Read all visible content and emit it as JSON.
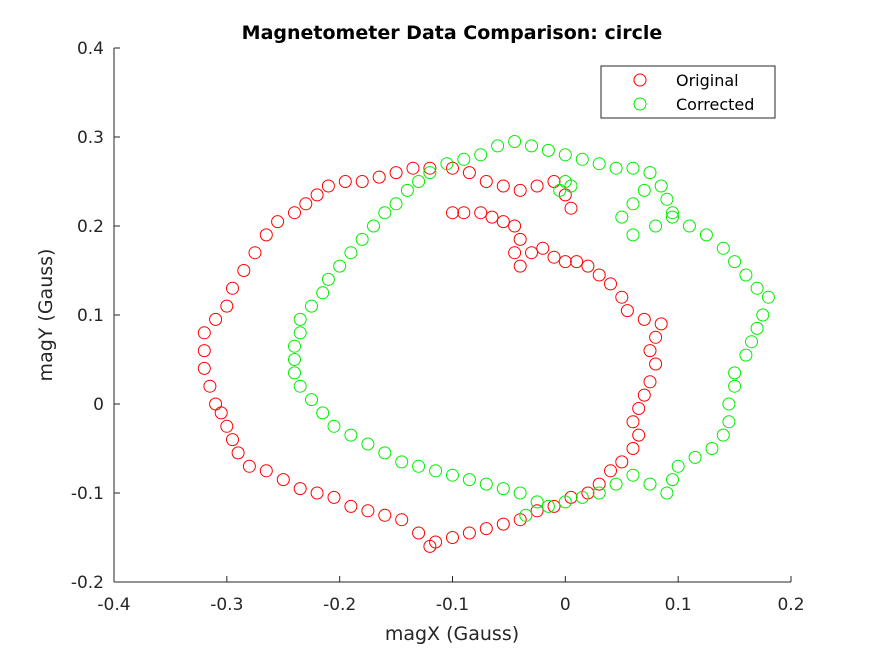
{
  "chart_data": {
    "type": "scatter",
    "title": "Magnetometer Data Comparison: circle",
    "xlabel": "magX (Gauss)",
    "ylabel": "magY (Gauss)",
    "xlim": [
      -0.4,
      0.2
    ],
    "ylim": [
      -0.2,
      0.4
    ],
    "xticks": [
      -0.4,
      -0.3,
      -0.2,
      -0.1,
      0,
      0.1,
      0.2
    ],
    "xtick_labels": [
      "-0.4",
      "-0.3",
      "-0.2",
      "-0.1",
      "0",
      "0.1",
      "0.2"
    ],
    "yticks": [
      -0.2,
      -0.1,
      0,
      0.1,
      0.2,
      0.3,
      0.4
    ],
    "ytick_labels": [
      "-0.2",
      "-0.1",
      "0",
      "0.1",
      "0.2",
      "0.3",
      "0.4"
    ],
    "grid": false,
    "legend_position": "top-right",
    "series": [
      {
        "name": "Original",
        "color": "#ff0000",
        "marker": "open-circle",
        "points": [
          [
            -0.115,
            -0.155
          ],
          [
            -0.13,
            -0.145
          ],
          [
            -0.145,
            -0.13
          ],
          [
            -0.16,
            -0.125
          ],
          [
            -0.175,
            -0.12
          ],
          [
            -0.19,
            -0.115
          ],
          [
            -0.205,
            -0.105
          ],
          [
            -0.22,
            -0.1
          ],
          [
            -0.235,
            -0.095
          ],
          [
            -0.25,
            -0.085
          ],
          [
            -0.265,
            -0.075
          ],
          [
            -0.28,
            -0.07
          ],
          [
            -0.29,
            -0.055
          ],
          [
            -0.295,
            -0.04
          ],
          [
            -0.3,
            -0.025
          ],
          [
            -0.305,
            -0.01
          ],
          [
            -0.31,
            0.0
          ],
          [
            -0.315,
            0.02
          ],
          [
            -0.32,
            0.04
          ],
          [
            -0.32,
            0.06
          ],
          [
            -0.32,
            0.08
          ],
          [
            -0.31,
            0.095
          ],
          [
            -0.3,
            0.11
          ],
          [
            -0.295,
            0.13
          ],
          [
            -0.285,
            0.15
          ],
          [
            -0.275,
            0.17
          ],
          [
            -0.265,
            0.19
          ],
          [
            -0.255,
            0.205
          ],
          [
            -0.24,
            0.215
          ],
          [
            -0.23,
            0.225
          ],
          [
            -0.22,
            0.235
          ],
          [
            -0.21,
            0.245
          ],
          [
            -0.195,
            0.25
          ],
          [
            -0.18,
            0.25
          ],
          [
            -0.165,
            0.255
          ],
          [
            -0.15,
            0.26
          ],
          [
            -0.135,
            0.265
          ],
          [
            -0.12,
            0.265
          ],
          [
            -0.1,
            0.265
          ],
          [
            -0.085,
            0.26
          ],
          [
            -0.07,
            0.25
          ],
          [
            -0.055,
            0.245
          ],
          [
            -0.04,
            0.24
          ],
          [
            -0.025,
            0.245
          ],
          [
            -0.01,
            0.25
          ],
          [
            0.0,
            0.235
          ],
          [
            0.005,
            0.22
          ],
          [
            -0.1,
            0.215
          ],
          [
            -0.09,
            0.215
          ],
          [
            -0.075,
            0.215
          ],
          [
            -0.065,
            0.21
          ],
          [
            -0.055,
            0.205
          ],
          [
            -0.045,
            0.2
          ],
          [
            -0.04,
            0.185
          ],
          [
            -0.045,
            0.17
          ],
          [
            -0.04,
            0.155
          ],
          [
            -0.03,
            0.17
          ],
          [
            -0.02,
            0.175
          ],
          [
            -0.01,
            0.165
          ],
          [
            0.0,
            0.16
          ],
          [
            0.01,
            0.16
          ],
          [
            0.02,
            0.155
          ],
          [
            0.03,
            0.145
          ],
          [
            0.04,
            0.135
          ],
          [
            0.05,
            0.12
          ],
          [
            0.055,
            0.105
          ],
          [
            0.07,
            0.095
          ],
          [
            0.085,
            0.09
          ],
          [
            0.08,
            0.075
          ],
          [
            0.075,
            0.06
          ],
          [
            0.08,
            0.045
          ],
          [
            0.075,
            0.025
          ],
          [
            0.07,
            0.01
          ],
          [
            0.065,
            -0.005
          ],
          [
            0.06,
            -0.02
          ],
          [
            0.065,
            -0.035
          ],
          [
            0.06,
            -0.05
          ],
          [
            0.05,
            -0.065
          ],
          [
            0.04,
            -0.075
          ],
          [
            0.03,
            -0.09
          ],
          [
            0.02,
            -0.1
          ],
          [
            0.005,
            -0.105
          ],
          [
            -0.01,
            -0.115
          ],
          [
            -0.025,
            -0.12
          ],
          [
            -0.04,
            -0.13
          ],
          [
            -0.055,
            -0.135
          ],
          [
            -0.07,
            -0.14
          ],
          [
            -0.085,
            -0.145
          ],
          [
            -0.1,
            -0.15
          ],
          [
            -0.12,
            -0.16
          ]
        ]
      },
      {
        "name": "Corrected",
        "color": "#00ee00",
        "marker": "open-circle",
        "points": [
          [
            -0.025,
            -0.11
          ],
          [
            -0.04,
            -0.1
          ],
          [
            -0.055,
            -0.095
          ],
          [
            -0.07,
            -0.09
          ],
          [
            -0.085,
            -0.085
          ],
          [
            -0.1,
            -0.08
          ],
          [
            -0.115,
            -0.075
          ],
          [
            -0.13,
            -0.07
          ],
          [
            -0.145,
            -0.065
          ],
          [
            -0.16,
            -0.055
          ],
          [
            -0.175,
            -0.045
          ],
          [
            -0.19,
            -0.035
          ],
          [
            -0.205,
            -0.025
          ],
          [
            -0.215,
            -0.01
          ],
          [
            -0.225,
            0.005
          ],
          [
            -0.235,
            0.02
          ],
          [
            -0.24,
            0.035
          ],
          [
            -0.24,
            0.05
          ],
          [
            -0.24,
            0.065
          ],
          [
            -0.235,
            0.08
          ],
          [
            -0.235,
            0.095
          ],
          [
            -0.225,
            0.11
          ],
          [
            -0.215,
            0.125
          ],
          [
            -0.21,
            0.14
          ],
          [
            -0.2,
            0.155
          ],
          [
            -0.19,
            0.17
          ],
          [
            -0.18,
            0.185
          ],
          [
            -0.17,
            0.2
          ],
          [
            -0.16,
            0.215
          ],
          [
            -0.15,
            0.225
          ],
          [
            -0.14,
            0.24
          ],
          [
            -0.13,
            0.25
          ],
          [
            -0.12,
            0.26
          ],
          [
            -0.105,
            0.27
          ],
          [
            -0.09,
            0.275
          ],
          [
            -0.075,
            0.28
          ],
          [
            -0.06,
            0.29
          ],
          [
            -0.045,
            0.295
          ],
          [
            -0.03,
            0.29
          ],
          [
            -0.015,
            0.285
          ],
          [
            0.0,
            0.28
          ],
          [
            0.015,
            0.275
          ],
          [
            0.03,
            0.27
          ],
          [
            0.045,
            0.265
          ],
          [
            0.06,
            0.265
          ],
          [
            0.075,
            0.26
          ],
          [
            0.085,
            0.245
          ],
          [
            0.09,
            0.23
          ],
          [
            0.095,
            0.215
          ],
          [
            0.11,
            0.2
          ],
          [
            0.125,
            0.19
          ],
          [
            0.14,
            0.175
          ],
          [
            0.15,
            0.16
          ],
          [
            0.16,
            0.145
          ],
          [
            0.17,
            0.13
          ],
          [
            0.18,
            0.12
          ],
          [
            0.175,
            0.1
          ],
          [
            0.17,
            0.085
          ],
          [
            0.165,
            0.07
          ],
          [
            0.16,
            0.055
          ],
          [
            0.15,
            0.035
          ],
          [
            0.15,
            0.02
          ],
          [
            0.145,
            0.0
          ],
          [
            0.145,
            -0.02
          ],
          [
            0.14,
            -0.035
          ],
          [
            0.13,
            -0.05
          ],
          [
            0.115,
            -0.06
          ],
          [
            0.1,
            -0.07
          ],
          [
            0.095,
            -0.085
          ],
          [
            0.09,
            -0.1
          ],
          [
            0.075,
            -0.09
          ],
          [
            0.06,
            -0.08
          ],
          [
            0.045,
            -0.09
          ],
          [
            0.03,
            -0.1
          ],
          [
            0.015,
            -0.105
          ],
          [
            0.0,
            -0.11
          ],
          [
            -0.015,
            -0.115
          ],
          [
            -0.035,
            -0.125
          ],
          [
            0.0,
            0.25
          ],
          [
            -0.005,
            0.24
          ],
          [
            0.005,
            0.245
          ],
          [
            0.06,
            0.225
          ],
          [
            0.05,
            0.21
          ],
          [
            0.06,
            0.19
          ],
          [
            0.08,
            0.2
          ],
          [
            0.095,
            0.21
          ],
          [
            0.07,
            0.24
          ]
        ]
      }
    ]
  }
}
